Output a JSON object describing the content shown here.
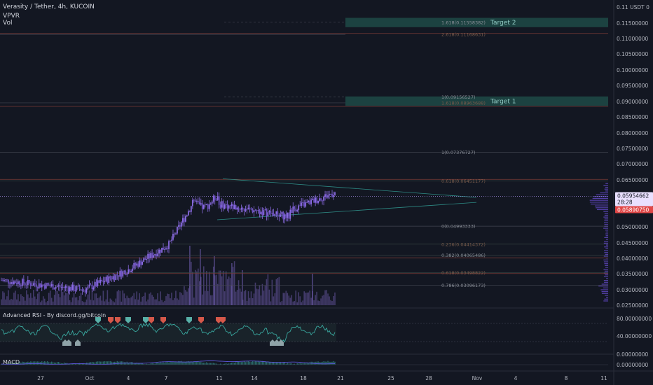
{
  "header": {
    "title": "Verasity / Tether, 4h, KUCOIN",
    "indicator_1": "VPVR",
    "indicator_2": "Vol"
  },
  "panels": {
    "rsi_title": "Advanced RSI - By discord.gg/bitcoin",
    "macd_title": "MACD"
  },
  "colors": {
    "background": "#131722",
    "candle": "#8a6be0",
    "volume": "#6b5aa8",
    "rsi_line": "#39a9a0",
    "macd_hist": "#2f7d7a",
    "macd_line": "#5b55d6",
    "fib_line": "#434651",
    "red_line": "#7a3b36",
    "target_box": "#1f4a46",
    "price_box": "#e9e0ff",
    "price_box_red": "#e14747",
    "marker_teal": "#58b0a8",
    "marker_red": "#d6584a"
  },
  "chart_data": {
    "type": "candlestick",
    "symbol": "Verasity / Tether",
    "timeframe": "4h",
    "exchange": "KUCOIN",
    "currency_label": "USDT",
    "y_axis_labels": [
      "0.11",
      "0.11500000",
      "0.11000000",
      "0.10500000",
      "0.10000000",
      "0.09500000",
      "0.09000000",
      "0.08500000",
      "0.08000000",
      "0.07500000",
      "0.07000000",
      "0.06500000",
      "0.05500000",
      "0.05000000",
      "0.04500000",
      "0.04000000",
      "0.03500000",
      "0.03000000",
      "0.02500000"
    ],
    "y_range": [
      0.0245,
      0.1205
    ],
    "rsi_labels": [
      "80.00000000",
      "40.00000000"
    ],
    "macd_labels": [
      "0.00000000"
    ],
    "x_axis_labels": [
      "27",
      "Oct",
      "4",
      "7",
      "11",
      "14",
      "18",
      "21",
      "25",
      "28",
      "Nov",
      "4",
      "8",
      "11"
    ],
    "current_price": "0.05954662",
    "countdown": "28:28",
    "vwap_price": "0.05890750",
    "fib_levels": [
      {
        "label": "1.618(0.11558382)",
        "value": 0.11558382
      },
      {
        "label": "2.618(0.11168631)",
        "value": 0.11168631
      },
      {
        "label": "1(0.09156527)",
        "value": 0.09156527
      },
      {
        "label": "1.618(0.08963688)",
        "value": 0.08963688
      },
      {
        "label": "1(0.07376727)",
        "value": 0.07376727
      },
      {
        "label": "0.618(0.06451177)",
        "value": 0.06451177
      },
      {
        "label": "0(0.04993333)",
        "value": 0.04993333
      },
      {
        "label": "0.236(0.04414372)",
        "value": 0.04414372
      },
      {
        "label": "0.382(0.04065486)",
        "value": 0.04065486
      },
      {
        "label": "0.618(0.03498822)",
        "value": 0.03498822
      },
      {
        "label": "0.786(0.03096173)",
        "value": 0.03096173
      }
    ],
    "targets": [
      {
        "label": "Target 2",
        "low": 0.114,
        "high": 0.117
      },
      {
        "label": "Target 1",
        "low": 0.0887,
        "high": 0.0917
      }
    ],
    "red_levels": [
      0.112,
      0.0885,
      0.065,
      0.0397,
      0.0347
    ],
    "grid": false,
    "legend": "none"
  }
}
